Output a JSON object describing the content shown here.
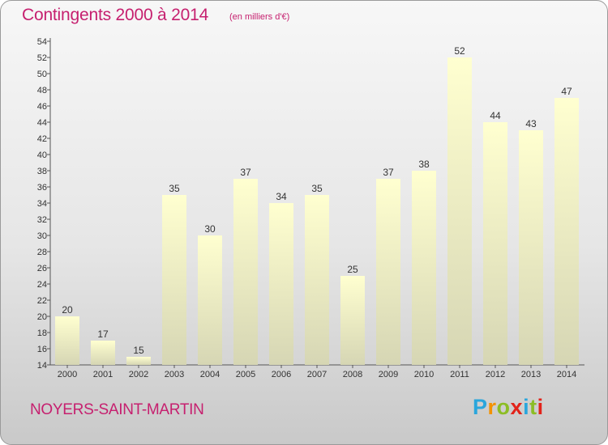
{
  "title": "Contingents 2000 à 2014",
  "subtitle": "(en milliers d'€)",
  "commune": "NOYERS-SAINT-MARTIN",
  "logo": {
    "text": "Proxiti",
    "colors": [
      "#2aa6dc",
      "#f39200",
      "#8cbd25",
      "#e2231a",
      "#2aa6dc",
      "#8cbd25",
      "#e2231a"
    ]
  },
  "chart_data": {
    "type": "bar",
    "categories": [
      "2000",
      "2001",
      "2002",
      "2003",
      "2004",
      "2005",
      "2006",
      "2007",
      "2008",
      "2009",
      "2010",
      "2011",
      "2012",
      "2013",
      "2014"
    ],
    "values": [
      20,
      17,
      15,
      35,
      30,
      37,
      34,
      35,
      25,
      37,
      38,
      52,
      44,
      43,
      47
    ],
    "ylim": [
      14,
      54
    ],
    "yticks": [
      14,
      16,
      18,
      20,
      22,
      24,
      26,
      28,
      30,
      32,
      34,
      36,
      38,
      40,
      42,
      44,
      46,
      48,
      50,
      52,
      54
    ],
    "grid": false,
    "bar_color_top": "#ffffd0",
    "bar_color_bottom": "#d6d6b4"
  }
}
